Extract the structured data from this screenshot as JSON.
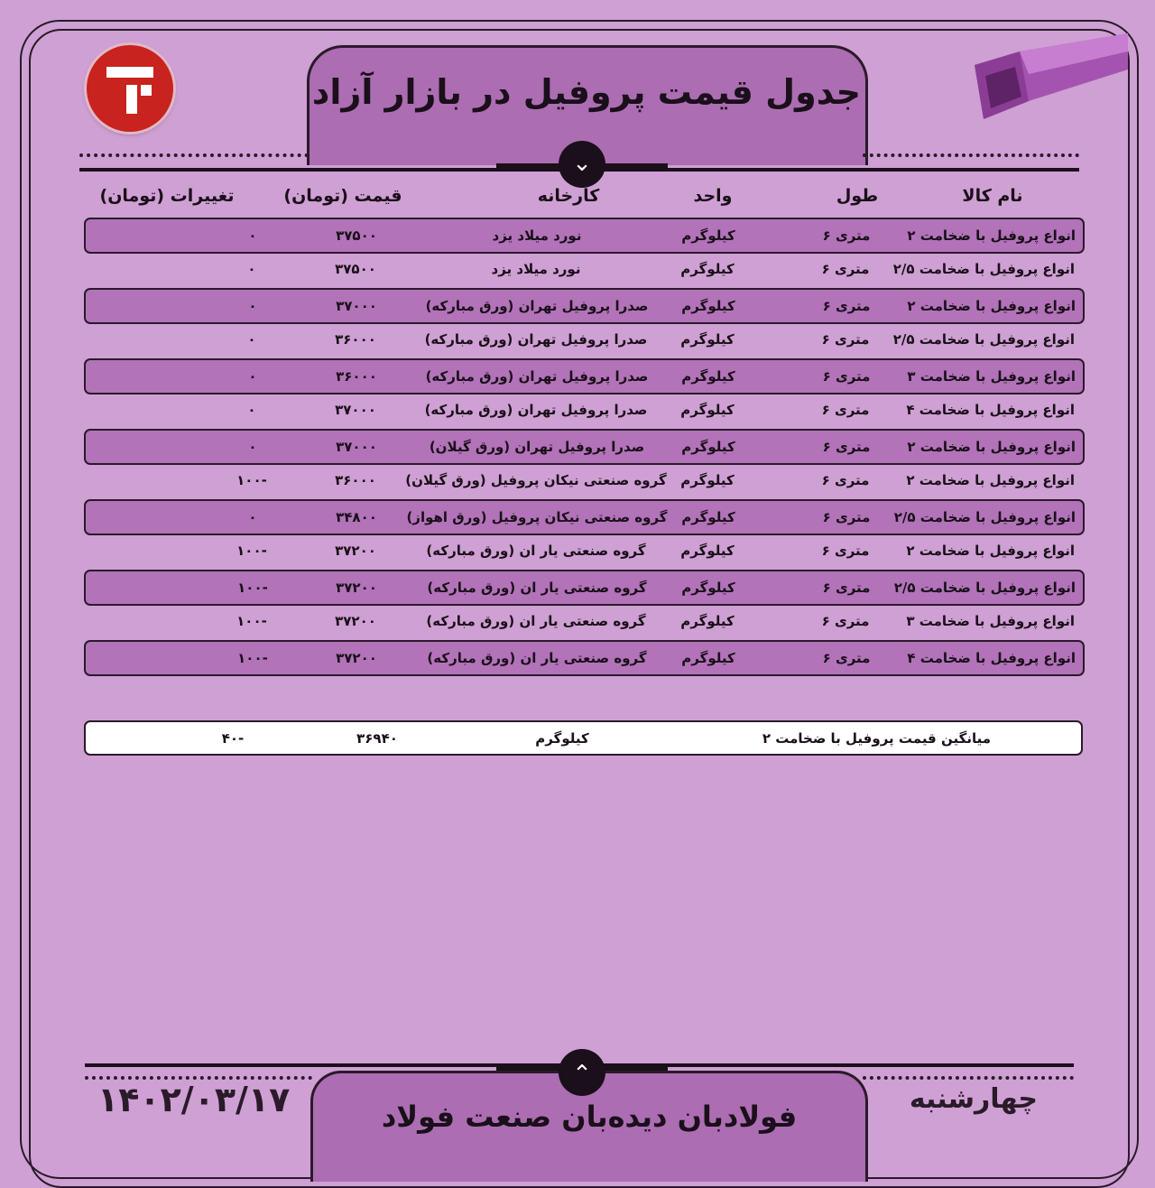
{
  "header": {
    "title": "جدول قیمت پروفیل در بازار آزاد"
  },
  "logo": {
    "name": "logo-icon"
  },
  "columns": [
    "نام کالا",
    "طول",
    "واحد",
    "کارخانه",
    "قیمت (تومان)",
    "تغییرات (تومان)"
  ],
  "rows": [
    {
      "name": "انواع پروفیل با ضخامت ۲",
      "length": "متری ۶",
      "unit": "کیلوگرم",
      "factory": "نورد میلاد یزد",
      "price": "۳۷۵۰۰",
      "change": "۰"
    },
    {
      "name": "انواع پروفیل با ضخامت ۲/۵",
      "length": "متری ۶",
      "unit": "کیلوگرم",
      "factory": "نورد میلاد یزد",
      "price": "۳۷۵۰۰",
      "change": "۰"
    },
    {
      "name": "انواع پروفیل با ضخامت ۲",
      "length": "متری ۶",
      "unit": "کیلوگرم",
      "factory": "صدرا پروفیل تهران (ورق مبارکه)",
      "price": "۳۷۰۰۰",
      "change": "۰"
    },
    {
      "name": "انواع پروفیل با ضخامت ۲/۵",
      "length": "متری ۶",
      "unit": "کیلوگرم",
      "factory": "صدرا پروفیل تهران (ورق مبارکه)",
      "price": "۳۶۰۰۰",
      "change": "۰"
    },
    {
      "name": "انواع پروفیل با ضخامت ۳",
      "length": "متری ۶",
      "unit": "کیلوگرم",
      "factory": "صدرا پروفیل تهران (ورق مبارکه)",
      "price": "۳۶۰۰۰",
      "change": "۰"
    },
    {
      "name": "انواع پروفیل با ضخامت ۴",
      "length": "متری ۶",
      "unit": "کیلوگرم",
      "factory": "صدرا پروفیل تهران (ورق مبارکه)",
      "price": "۳۷۰۰۰",
      "change": "۰"
    },
    {
      "name": "انواع پروفیل با ضخامت ۲",
      "length": "متری ۶",
      "unit": "کیلوگرم",
      "factory": "صدرا پروفیل تهران (ورق گیلان)",
      "price": "۳۷۰۰۰",
      "change": "۰"
    },
    {
      "name": "انواع پروفیل با ضخامت ۲",
      "length": "متری ۶",
      "unit": "کیلوگرم",
      "factory": "گروه صنعتی نیکان پروفیل (ورق گیلان)",
      "price": "۳۶۰۰۰",
      "change": "-۱۰۰"
    },
    {
      "name": "انواع پروفیل با ضخامت ۲/۵",
      "length": "متری ۶",
      "unit": "کیلوگرم",
      "factory": "گروه صنعتی نیکان پروفیل (ورق اهواز)",
      "price": "۳۴۸۰۰",
      "change": "۰"
    },
    {
      "name": "انواع پروفیل با ضخامت ۲",
      "length": "متری ۶",
      "unit": "کیلوگرم",
      "factory": "گروه صنعتی یار ان (ورق مبارکه)",
      "price": "۳۷۲۰۰",
      "change": "-۱۰۰"
    },
    {
      "name": "انواع پروفیل با ضخامت ۲/۵",
      "length": "متری ۶",
      "unit": "کیلوگرم",
      "factory": "گروه صنعتی یار ان (ورق مبارکه)",
      "price": "۳۷۲۰۰",
      "change": "-۱۰۰"
    },
    {
      "name": "انواع پروفیل با ضخامت ۳",
      "length": "متری ۶",
      "unit": "کیلوگرم",
      "factory": "گروه صنعتی یار ان (ورق مبارکه)",
      "price": "۳۷۲۰۰",
      "change": "-۱۰۰"
    },
    {
      "name": "انواع پروفیل با ضخامت ۴",
      "length": "متری ۶",
      "unit": "کیلوگرم",
      "factory": "گروه صنعتی یار ان (ورق مبارکه)",
      "price": "۳۷۲۰۰",
      "change": "-۱۰۰"
    }
  ],
  "average": {
    "label": "میانگین قیمت پروفیل با ضخامت ۲",
    "unit": "کیلوگرم",
    "price": "۳۶۹۴۰",
    "change": "-۴۰"
  },
  "footer": {
    "title": "فولادبان دیده‌بان صنعت فولاد",
    "date": "۱۴۰۲/۰۳/۱۷",
    "day": "چهارشنبه"
  },
  "colors": {
    "background": "#cfa0d3",
    "row_highlight": "#b273b8",
    "tab": "#ac6db2",
    "logo": "#c8231f"
  }
}
